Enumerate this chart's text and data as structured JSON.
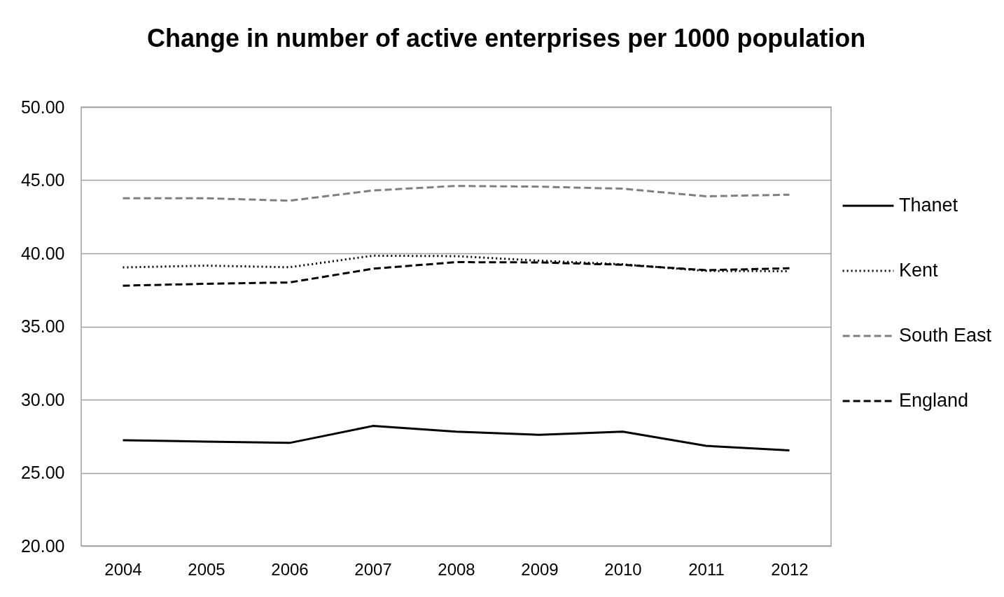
{
  "chart_data": {
    "type": "line",
    "title": "Change in number of active enterprises per 1000 population",
    "categories": [
      "2004",
      "2005",
      "2006",
      "2007",
      "2008",
      "2009",
      "2010",
      "2011",
      "2012"
    ],
    "series": [
      {
        "name": "Thanet",
        "color": "#000000",
        "line_style": "solid",
        "values": [
          27.22,
          27.13,
          27.04,
          28.2,
          27.81,
          27.59,
          27.81,
          26.84,
          26.53
        ]
      },
      {
        "name": "Kent",
        "color": "#000000",
        "line_style": "dotted",
        "values": [
          39.04,
          39.16,
          39.05,
          39.84,
          39.81,
          39.5,
          39.25,
          38.8,
          38.78
        ]
      },
      {
        "name": "South East",
        "color": "#7f7f7f",
        "line_style": "dashed",
        "values": [
          43.77,
          43.77,
          43.6,
          44.3,
          44.61,
          44.56,
          44.42,
          43.9,
          44.01
        ]
      },
      {
        "name": "England",
        "color": "#000000",
        "line_style": "dashed",
        "values": [
          37.79,
          37.92,
          38.01,
          38.95,
          39.4,
          39.38,
          39.22,
          38.85,
          38.98
        ]
      }
    ],
    "ylim": [
      20,
      50
    ],
    "yticks": [
      {
        "value": 20,
        "label": "20.00"
      },
      {
        "value": 25,
        "label": "25.00"
      },
      {
        "value": 30,
        "label": "30.00"
      },
      {
        "value": 35,
        "label": "35.00"
      },
      {
        "value": 40,
        "label": "40.00"
      },
      {
        "value": 45,
        "label": "45.00"
      },
      {
        "value": 50,
        "label": "50.00"
      }
    ],
    "grid": "y",
    "legend": "right"
  }
}
